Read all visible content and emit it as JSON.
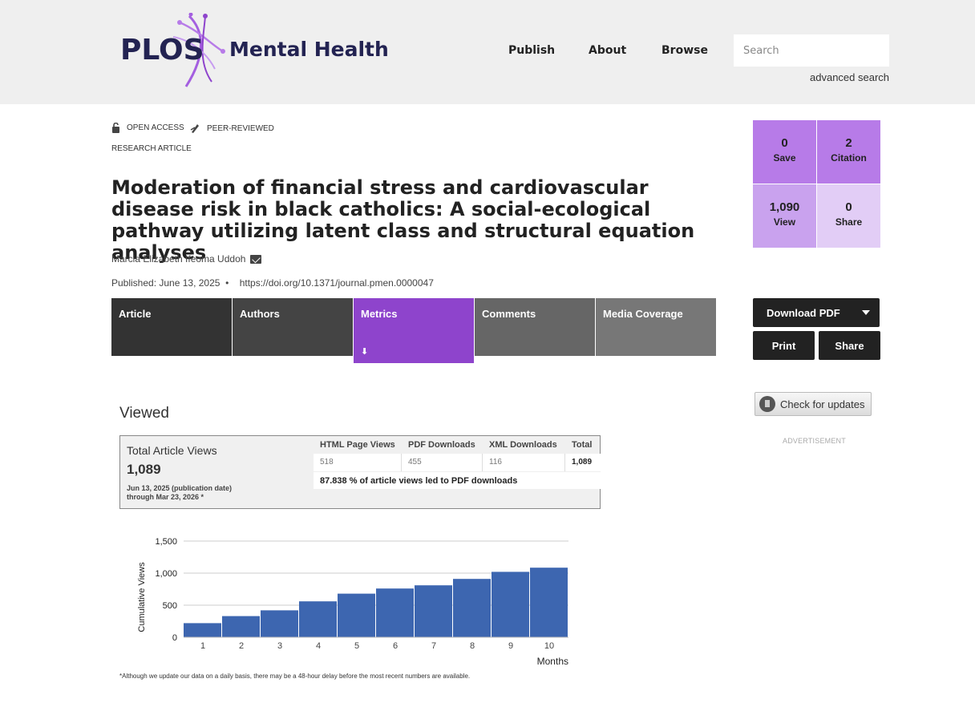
{
  "header": {
    "logo_brand": "PLOS",
    "logo_journal": "Mental Health",
    "nav": [
      "Publish",
      "About",
      "Browse"
    ],
    "search_placeholder": "Search",
    "advanced_search": "advanced search"
  },
  "badges": {
    "open_access": "OPEN ACCESS",
    "peer_reviewed": "PEER-REVIEWED",
    "article_type": "RESEARCH ARTICLE"
  },
  "article": {
    "title": "Moderation of financial stress and cardiovascular disease risk in black catholics: A social-ecological pathway utilizing latent class and structural equation analyses",
    "author": "Marcia Elizabeth Ifeoma Uddoh",
    "published": "Published: June 13, 2025",
    "doi": "https://doi.org/10.1371/journal.pmen.0000047"
  },
  "tabs": [
    {
      "label": "Article",
      "color": "#333333"
    },
    {
      "label": "Authors",
      "color": "#444444"
    },
    {
      "label": "Metrics",
      "color": "#8e44cc"
    },
    {
      "label": "Comments",
      "color": "#666666"
    },
    {
      "label": "Media Coverage",
      "color": "#777777"
    }
  ],
  "metrics": {
    "save": {
      "value": "0",
      "label": "Save"
    },
    "citation": {
      "value": "2",
      "label": "Citation"
    },
    "view": {
      "value": "1,090",
      "label": "View"
    },
    "share": {
      "value": "0",
      "label": "Share"
    }
  },
  "actions": {
    "download_pdf": "Download PDF",
    "print": "Print",
    "share": "Share",
    "check_updates": "Check for updates",
    "advertisement": "ADVERTISEMENT"
  },
  "viewed": {
    "heading": "Viewed",
    "box_title": "Total Article Views",
    "total": "1,089",
    "date_from": "Jun 13, 2025 (publication date)",
    "date_to": "through Mar 23, 2026 *",
    "headers": [
      "HTML Page Views",
      "PDF Downloads",
      "XML Downloads",
      "Total"
    ],
    "values": [
      "518",
      "455",
      "116",
      "1,089"
    ],
    "pdf_ratio": "87.838 % of article views led to PDF downloads"
  },
  "chart_data": {
    "type": "bar",
    "categories": [
      "1",
      "2",
      "3",
      "4",
      "5",
      "6",
      "7",
      "8",
      "9",
      "10"
    ],
    "values": [
      220,
      330,
      420,
      560,
      680,
      760,
      810,
      910,
      1020,
      1085
    ],
    "xlabel": "Months",
    "ylabel": "Cumulative Views",
    "ylim": [
      0,
      1500
    ],
    "yticks": [
      "0",
      "500",
      "1,000",
      "1,500"
    ],
    "bar_color": "#3d66b0"
  },
  "footnote": "*Although we update our data on a daily basis, there may be a 48-hour delay before the most recent numbers are available."
}
